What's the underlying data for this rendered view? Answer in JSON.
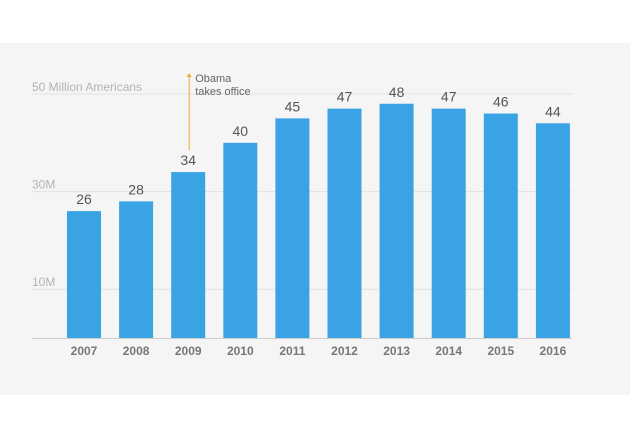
{
  "chart_data": {
    "type": "bar",
    "categories": [
      "2007",
      "2008",
      "2009",
      "2010",
      "2011",
      "2012",
      "2013",
      "2014",
      "2015",
      "2016"
    ],
    "values": [
      26,
      28,
      34,
      40,
      45,
      47,
      48,
      47,
      46,
      44
    ],
    "value_labels": [
      "26",
      "28",
      "34",
      "40",
      "45",
      "47",
      "48",
      "47",
      "46",
      "44"
    ],
    "y_ticks": [
      {
        "value": 10,
        "label": "10M"
      },
      {
        "value": 30,
        "label": "30M"
      },
      {
        "value": 50,
        "label": "50 Million Americans"
      }
    ],
    "ylim": [
      0,
      59
    ],
    "grid": true,
    "annotation": {
      "category": "2009",
      "line1": "Obama",
      "line2": "takes office"
    },
    "colors": {
      "bar": "#3aa3e3",
      "background": "#f5f5f5",
      "grid": "#e2e2e2",
      "tick_label": "#b3b3b3",
      "value_label": "#555555",
      "category_label": "#777777",
      "annotation_line": "#f2a833",
      "annotation_text": "#666666"
    }
  }
}
